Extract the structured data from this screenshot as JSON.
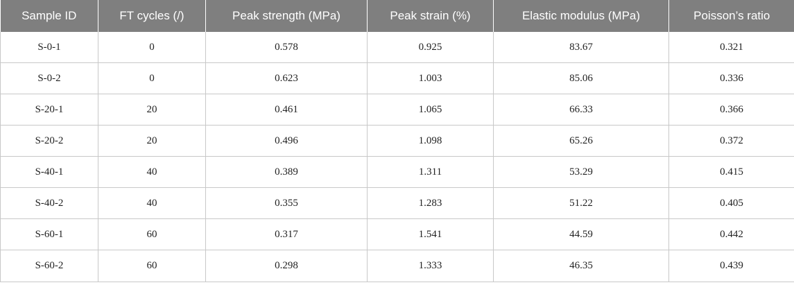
{
  "table": {
    "headers": [
      "Sample ID",
      "FT cycles (/)",
      "Peak strength (MPa)",
      "Peak strain (%)",
      "Elastic modulus (MPa)",
      "Poisson’s ratio"
    ],
    "rows": [
      [
        "S-0-1",
        "0",
        "0.578",
        "0.925",
        "83.67",
        "0.321"
      ],
      [
        "S-0-2",
        "0",
        "0.623",
        "1.003",
        "85.06",
        "0.336"
      ],
      [
        "S-20-1",
        "20",
        "0.461",
        "1.065",
        "66.33",
        "0.366"
      ],
      [
        "S-20-2",
        "20",
        "0.496",
        "1.098",
        "65.26",
        "0.372"
      ],
      [
        "S-40-1",
        "40",
        "0.389",
        "1.311",
        "53.29",
        "0.415"
      ],
      [
        "S-40-2",
        "40",
        "0.355",
        "1.283",
        "51.22",
        "0.405"
      ],
      [
        "S-60-1",
        "60",
        "0.317",
        "1.541",
        "44.59",
        "0.442"
      ],
      [
        "S-60-2",
        "60",
        "0.298",
        "1.333",
        "46.35",
        "0.439"
      ]
    ]
  },
  "colors": {
    "header_bg": "#7f7f7f",
    "header_text": "#ffffff",
    "grid_line": "#c8c8c8"
  }
}
